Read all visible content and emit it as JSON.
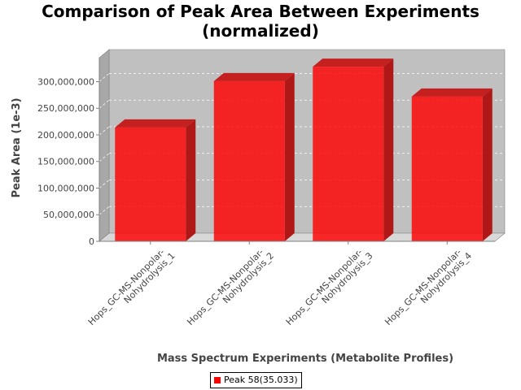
{
  "chart_data": {
    "type": "bar",
    "title": "Comparison of Peak Area Between Experiments (normalized)",
    "title_lines": [
      "Comparison of Peak Area Between Experiments",
      "(normalized)"
    ],
    "xlabel": "Mass Spectrum Experiments (Metabolite Profiles)",
    "ylabel": "Peak Area (1e-3)",
    "categories": [
      "Hops_GC-MS-Nonpolar-Nohydrolysis_1",
      "Hops_GC-MS-Nonpolar-Nohydrolysis_2",
      "Hops_GC-MS-Nonpolar-Nohydrolysis_3",
      "Hops_GC-MS-Nonpolar-Nohydrolysis_4"
    ],
    "category_label_lines": [
      [
        "Hops_GC-MS-Nonpolar-",
        "Nohydrolysis_1"
      ],
      [
        "Hops_GC-MS-Nonpolar-",
        "Nohydrolysis_2"
      ],
      [
        "Hops_GC-MS-Nonpolar-",
        "Nohydrolysis_3"
      ],
      [
        "Hops_GC-MS-Nonpolar-",
        "Nohydrolysis_4"
      ]
    ],
    "series": [
      {
        "name": "Peak 58(35.033)",
        "color": "#ff0000",
        "values": [
          214000000,
          301000000,
          328000000,
          272000000
        ]
      }
    ],
    "yticks": [
      0,
      50000000,
      100000000,
      150000000,
      200000000,
      250000000,
      300000000
    ],
    "ytick_labels": [
      "0",
      "50,000,000",
      "100,000,000",
      "150,000,000",
      "200,000,000",
      "250,000,000",
      "300,000,000"
    ],
    "ylim": [
      0,
      345000000
    ],
    "grid": true,
    "legend_position": "bottom-center",
    "colors": {
      "plot_background": "#c0c0c0",
      "bar": "#ff0000"
    }
  }
}
